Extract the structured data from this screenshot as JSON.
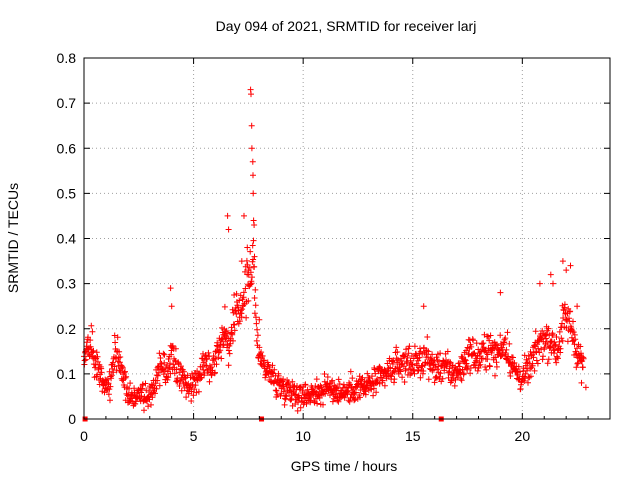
{
  "chart_data": {
    "type": "scatter",
    "title": "Day 094 of 2021, SRMTID for receiver larj",
    "xlabel": "GPS time / hours",
    "ylabel": "SRMTID / TECUs",
    "xlim": [
      0,
      24
    ],
    "ylim": [
      0,
      0.8
    ],
    "x_ticks": [
      0,
      5,
      10,
      15,
      20
    ],
    "x_tick_labels": [
      "0",
      "5",
      "10",
      "15",
      "20"
    ],
    "y_ticks": [
      0,
      0.1,
      0.2,
      0.3,
      0.4,
      0.5,
      0.6,
      0.7,
      0.8
    ],
    "y_tick_labels": [
      "0",
      "0.1",
      "0.2",
      "0.3",
      "0.4",
      "0.5",
      "0.6",
      "0.7",
      "0.8"
    ],
    "grid": true,
    "marker": "+",
    "color": "#ff0000",
    "series": [
      {
        "name": "SRMTID",
        "profile": [
          [
            0.0,
            0.14
          ],
          [
            0.2,
            0.16
          ],
          [
            0.4,
            0.15
          ],
          [
            0.6,
            0.12
          ],
          [
            0.8,
            0.09
          ],
          [
            1.0,
            0.07
          ],
          [
            1.2,
            0.08
          ],
          [
            1.4,
            0.15
          ],
          [
            1.6,
            0.13
          ],
          [
            1.8,
            0.1
          ],
          [
            2.0,
            0.06
          ],
          [
            2.3,
            0.05
          ],
          [
            2.6,
            0.06
          ],
          [
            2.9,
            0.04
          ],
          [
            3.2,
            0.07
          ],
          [
            3.5,
            0.12
          ],
          [
            3.8,
            0.1
          ],
          [
            4.0,
            0.15
          ],
          [
            4.3,
            0.1
          ],
          [
            4.6,
            0.08
          ],
          [
            4.9,
            0.07
          ],
          [
            5.2,
            0.09
          ],
          [
            5.5,
            0.14
          ],
          [
            5.8,
            0.11
          ],
          [
            6.1,
            0.15
          ],
          [
            6.4,
            0.2
          ],
          [
            6.6,
            0.16
          ],
          [
            6.9,
            0.22
          ],
          [
            7.2,
            0.26
          ],
          [
            7.5,
            0.3
          ],
          [
            7.7,
            0.36
          ],
          [
            7.9,
            0.17
          ],
          [
            8.2,
            0.12
          ],
          [
            8.5,
            0.1
          ],
          [
            8.8,
            0.08
          ],
          [
            9.2,
            0.07
          ],
          [
            9.6,
            0.06
          ],
          [
            10.0,
            0.05
          ],
          [
            10.4,
            0.06
          ],
          [
            10.8,
            0.06
          ],
          [
            11.2,
            0.07
          ],
          [
            11.6,
            0.06
          ],
          [
            12.0,
            0.06
          ],
          [
            12.4,
            0.07
          ],
          [
            12.8,
            0.07
          ],
          [
            13.2,
            0.08
          ],
          [
            13.6,
            0.09
          ],
          [
            14.0,
            0.11
          ],
          [
            14.4,
            0.12
          ],
          [
            14.8,
            0.13
          ],
          [
            15.2,
            0.12
          ],
          [
            15.6,
            0.14
          ],
          [
            16.0,
            0.11
          ],
          [
            16.4,
            0.12
          ],
          [
            16.8,
            0.1
          ],
          [
            17.2,
            0.11
          ],
          [
            17.6,
            0.15
          ],
          [
            18.0,
            0.13
          ],
          [
            18.4,
            0.16
          ],
          [
            18.8,
            0.14
          ],
          [
            19.2,
            0.17
          ],
          [
            19.6,
            0.11
          ],
          [
            20.0,
            0.09
          ],
          [
            20.4,
            0.12
          ],
          [
            20.8,
            0.17
          ],
          [
            21.2,
            0.18
          ],
          [
            21.6,
            0.15
          ],
          [
            21.9,
            0.22
          ],
          [
            22.2,
            0.21
          ],
          [
            22.5,
            0.15
          ],
          [
            22.8,
            0.12
          ]
        ],
        "spikes": [
          [
            3.95,
            0.29
          ],
          [
            4.0,
            0.25
          ],
          [
            6.55,
            0.45
          ],
          [
            6.6,
            0.42
          ],
          [
            7.2,
            0.35
          ],
          [
            7.3,
            0.45
          ],
          [
            7.45,
            0.38
          ],
          [
            7.5,
            0.33
          ],
          [
            7.6,
            0.73
          ],
          [
            7.62,
            0.72
          ],
          [
            7.65,
            0.65
          ],
          [
            7.66,
            0.6
          ],
          [
            7.7,
            0.57
          ],
          [
            7.71,
            0.54
          ],
          [
            7.72,
            0.5
          ],
          [
            7.74,
            0.44
          ],
          [
            7.76,
            0.43
          ],
          [
            7.78,
            0.36
          ],
          [
            8.0,
            0.22
          ],
          [
            15.5,
            0.25
          ],
          [
            19.0,
            0.28
          ],
          [
            20.8,
            0.3
          ],
          [
            21.3,
            0.32
          ],
          [
            21.4,
            0.3
          ],
          [
            21.85,
            0.35
          ],
          [
            22.0,
            0.33
          ],
          [
            22.2,
            0.34
          ],
          [
            22.5,
            0.25
          ],
          [
            22.7,
            0.08
          ],
          [
            22.9,
            0.07
          ]
        ],
        "axis_markers": [
          0.05,
          8.1,
          16.3
        ],
        "noise": 0.035,
        "point_step_hours": 0.0167
      }
    ]
  }
}
